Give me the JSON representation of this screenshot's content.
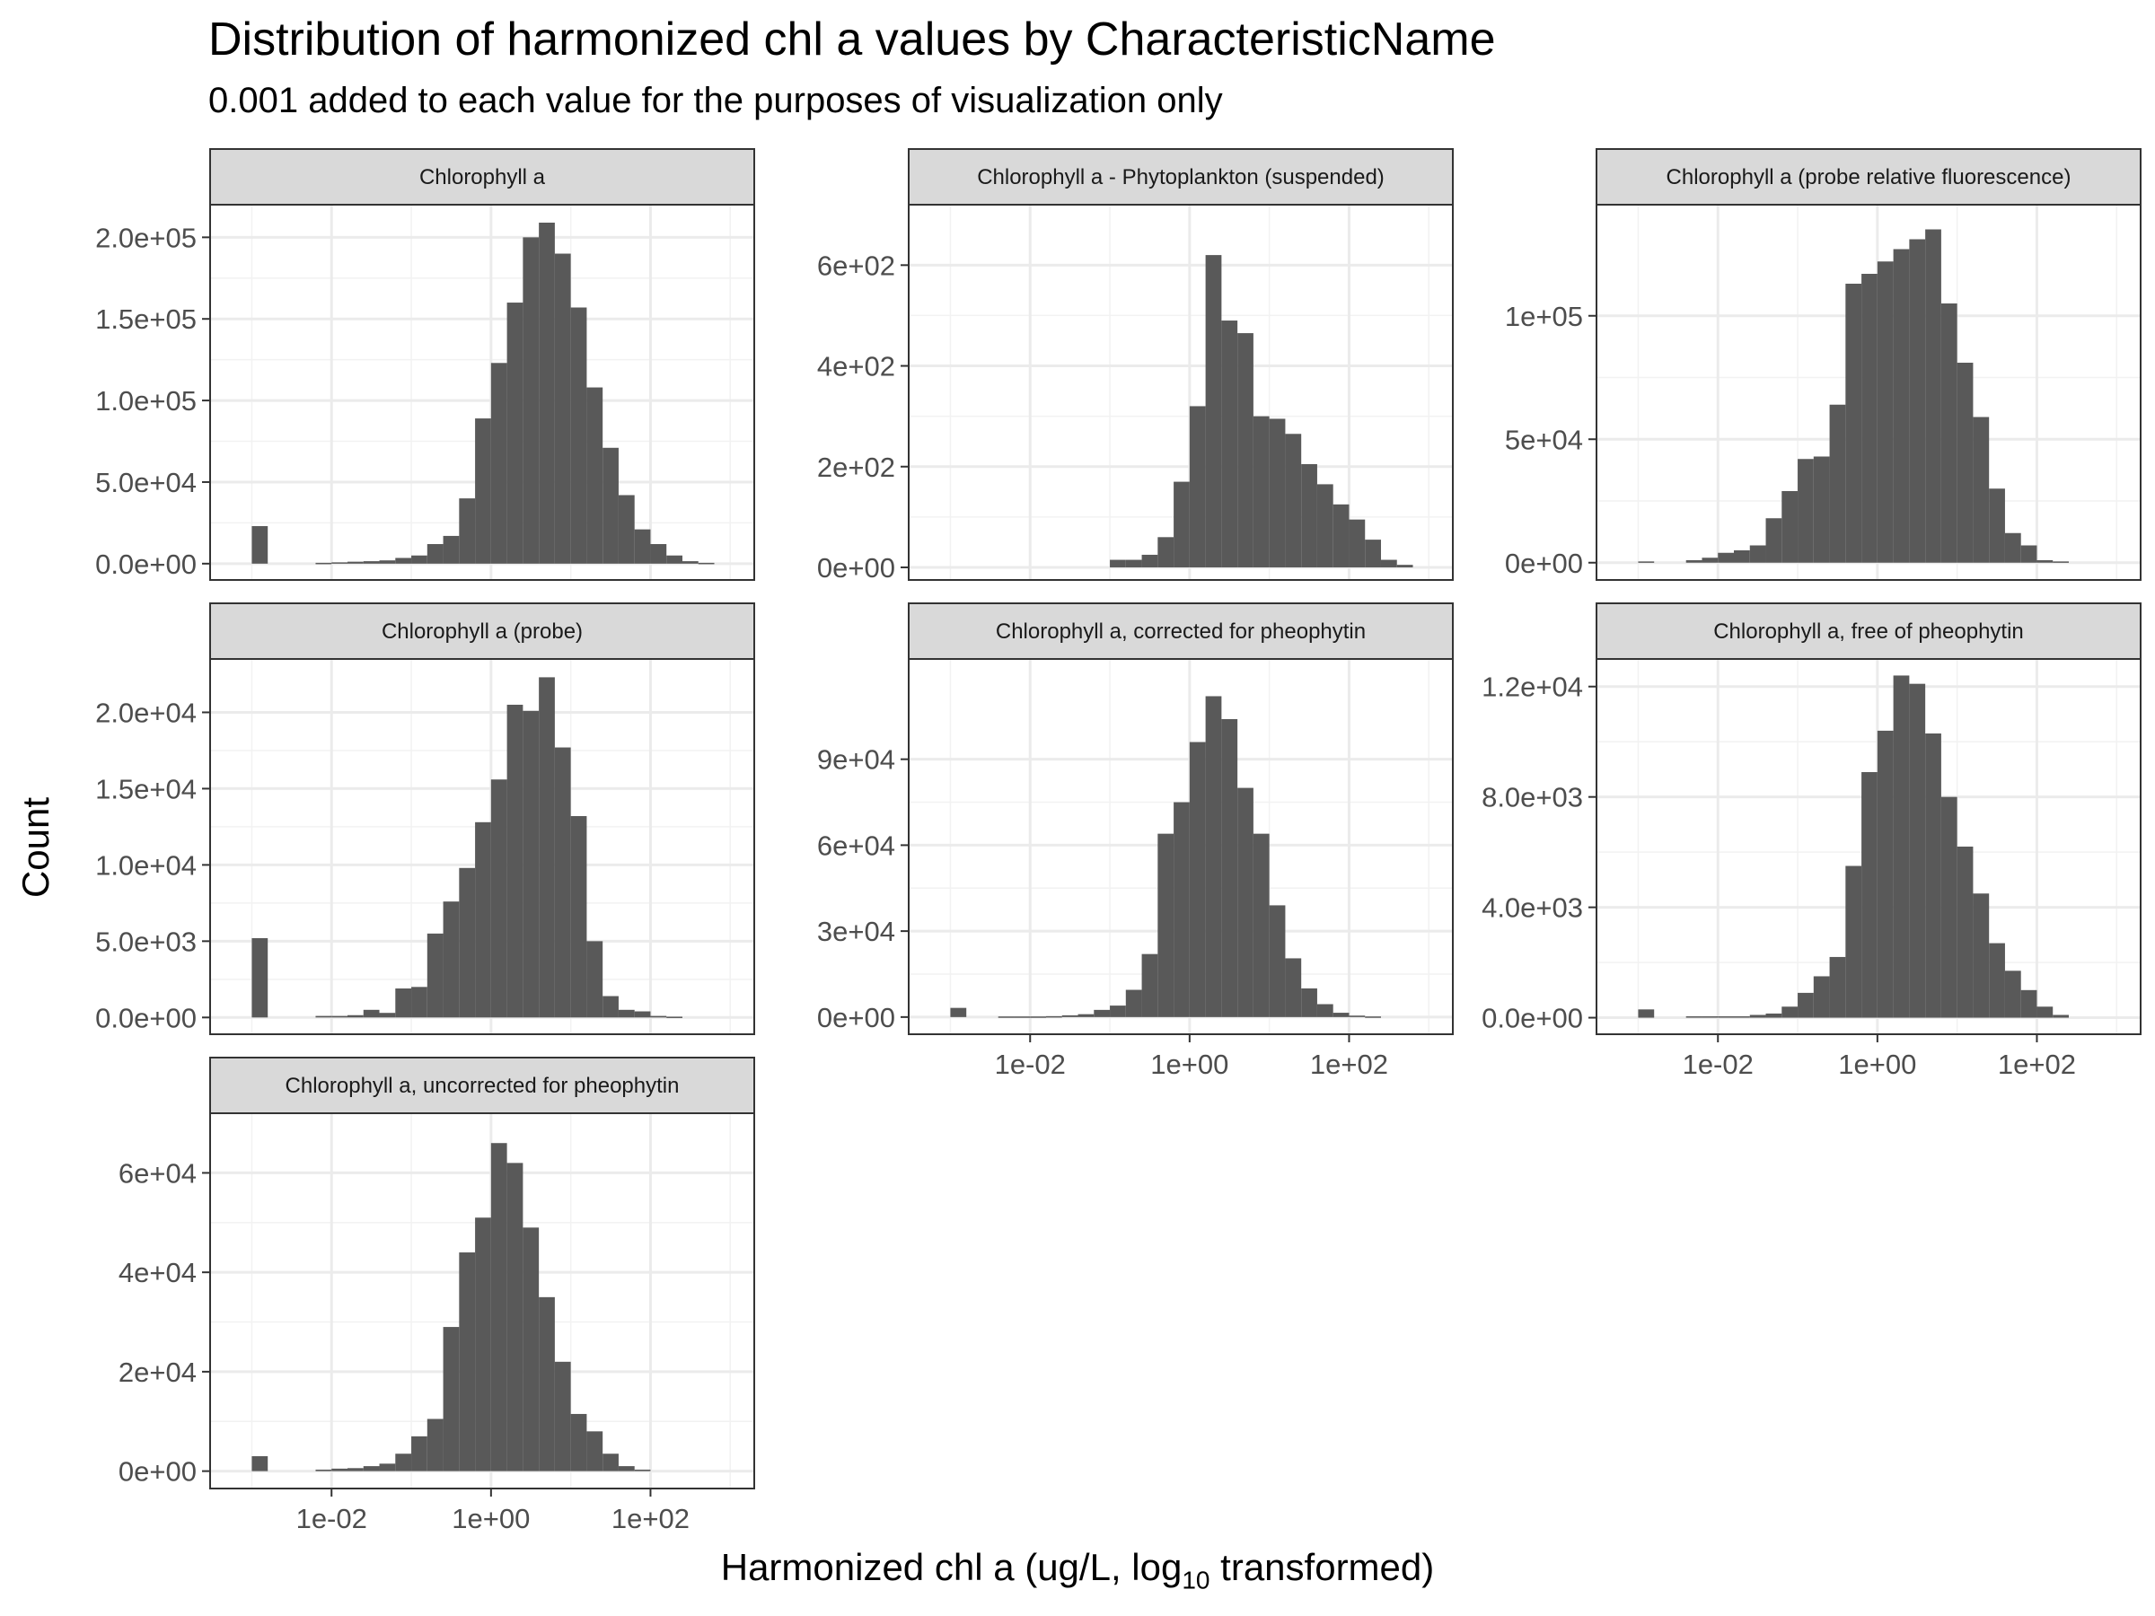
{
  "chart_data": {
    "type": "bar",
    "title": "Distribution of harmonized chl a values by CharacteristicName",
    "subtitle": "0.001 added to each value for the purposes of visualization only",
    "xlabel_prefix": "Harmonized chl a (ug/L,  log",
    "xlabel_sub": "10",
    "xlabel_suffix": " transformed)",
    "ylabel": "Count",
    "x_scale": "log10",
    "xlim": [
      0.0003,
      2000
    ],
    "x_ticks": [
      0.01,
      1,
      100
    ],
    "x_tick_labels": [
      "1e-02",
      "1e+00",
      "1e+02"
    ],
    "bin_left_edges_log10": [
      -3.0,
      -2.8,
      -2.6,
      -2.4,
      -2.2,
      -2.0,
      -1.8,
      -1.6,
      -1.4,
      -1.2,
      -1.0,
      -0.8,
      -0.6,
      -0.4,
      -0.2,
      0.0,
      0.2,
      0.4,
      0.6,
      0.8,
      1.0,
      1.2,
      1.4,
      1.6,
      1.8,
      2.0,
      2.2,
      2.4,
      2.6,
      2.8
    ],
    "bin_width_log10": 0.2,
    "grid": true,
    "panels": [
      {
        "name": "Chlorophyll a",
        "ylim": [
          -10000,
          220000
        ],
        "y_ticks": [
          0,
          50000,
          100000,
          150000,
          200000
        ],
        "y_tick_labels": [
          "0.0e+00",
          "5.0e+04",
          "1.0e+05",
          "1.5e+05",
          "2.0e+05"
        ],
        "show_x_axis": false,
        "values": [
          23000,
          0,
          0,
          0,
          500,
          800,
          1200,
          1500,
          2000,
          3500,
          5000,
          12000,
          17000,
          40000,
          89000,
          123000,
          160000,
          200000,
          209000,
          190000,
          157000,
          108000,
          71000,
          42000,
          21000,
          12000,
          5000,
          1500,
          500,
          0
        ]
      },
      {
        "name": "Chlorophyll a - Phytoplankton (suspended)",
        "ylim": [
          -25,
          720
        ],
        "y_ticks": [
          0,
          200,
          400,
          600
        ],
        "y_tick_labels": [
          "0e+00",
          "2e+02",
          "4e+02",
          "6e+02"
        ],
        "show_x_axis": false,
        "values": [
          0,
          0,
          0,
          0,
          0,
          0,
          0,
          0,
          0,
          0,
          15,
          15,
          25,
          60,
          170,
          320,
          620,
          490,
          465,
          300,
          295,
          265,
          205,
          165,
          125,
          95,
          55,
          15,
          5,
          0
        ]
      },
      {
        "name": "Chlorophyll a (probe relative fluorescence)",
        "ylim": [
          -7000,
          145000
        ],
        "y_ticks": [
          0,
          50000,
          100000
        ],
        "y_tick_labels": [
          "0e+00",
          "5e+04",
          "1e+05"
        ],
        "show_x_axis": false,
        "values": [
          500,
          0,
          0,
          1000,
          2000,
          4000,
          5000,
          7000,
          18000,
          29000,
          42000,
          43000,
          64000,
          113000,
          117000,
          122000,
          127000,
          131000,
          135000,
          105000,
          81000,
          59000,
          30000,
          12000,
          7000,
          1000,
          500,
          0,
          0,
          0
        ]
      },
      {
        "name": "Chlorophyll a (probe)",
        "ylim": [
          -1100,
          23500
        ],
        "y_ticks": [
          0,
          5000,
          10000,
          15000,
          20000
        ],
        "y_tick_labels": [
          "0.0e+00",
          "5.0e+03",
          "1.0e+04",
          "1.5e+04",
          "2.0e+04"
        ],
        "show_x_axis": false,
        "values": [
          5200,
          0,
          0,
          0,
          100,
          100,
          150,
          500,
          300,
          1900,
          2000,
          5500,
          7600,
          9800,
          12800,
          15600,
          20500,
          20100,
          22300,
          17700,
          13200,
          5000,
          1400,
          500,
          400,
          100,
          50,
          0,
          0,
          0
        ]
      },
      {
        "name": "Chlorophyll a, corrected for pheophytin",
        "ylim": [
          -6000,
          125000
        ],
        "y_ticks": [
          0,
          30000,
          60000,
          90000
        ],
        "y_tick_labels": [
          "0e+00",
          "3e+04",
          "6e+04",
          "9e+04"
        ],
        "show_x_axis": true,
        "values": [
          3200,
          0,
          0,
          200,
          200,
          200,
          300,
          600,
          1000,
          2500,
          4000,
          9500,
          22000,
          64000,
          75000,
          96000,
          112000,
          104000,
          80000,
          64000,
          39000,
          20500,
          10000,
          4500,
          1500,
          500,
          200,
          0,
          0,
          0
        ]
      },
      {
        "name": "Chlorophyll a, free of pheophytin",
        "ylim": [
          -600,
          13000
        ],
        "y_ticks": [
          0,
          4000,
          8000,
          12000
        ],
        "y_tick_labels": [
          "0.0e+00",
          "4.0e+03",
          "8.0e+03",
          "1.2e+04"
        ],
        "show_x_axis": true,
        "values": [
          300,
          0,
          0,
          50,
          50,
          50,
          50,
          100,
          150,
          400,
          900,
          1500,
          2200,
          5500,
          8900,
          10400,
          12400,
          12100,
          10300,
          8000,
          6200,
          4500,
          2700,
          1700,
          1000,
          400,
          100,
          0,
          0,
          0
        ]
      },
      {
        "name": "Chlorophyll a, uncorrected for pheophytin",
        "ylim": [
          -3500,
          72000
        ],
        "y_ticks": [
          0,
          20000,
          40000,
          60000
        ],
        "y_tick_labels": [
          "0e+00",
          "2e+04",
          "4e+04",
          "6e+04"
        ],
        "show_x_axis": true,
        "values": [
          3000,
          0,
          0,
          0,
          300,
          500,
          600,
          1000,
          1500,
          3500,
          7000,
          10500,
          29000,
          44000,
          51000,
          66000,
          62000,
          49000,
          35000,
          22000,
          11500,
          8000,
          3500,
          1000,
          300,
          0,
          0,
          0,
          0,
          0
        ]
      }
    ]
  }
}
